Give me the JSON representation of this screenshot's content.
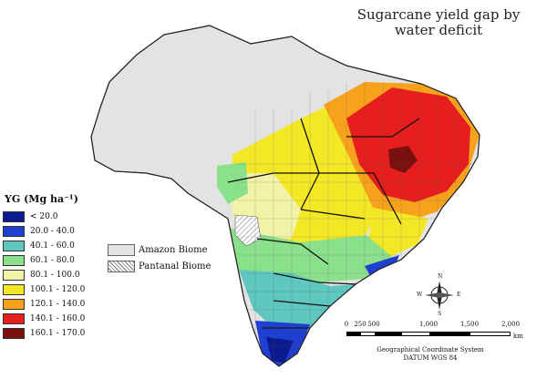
{
  "map": {
    "title_line1": "Sugarcane yield gap by",
    "title_line2": "water deficit"
  },
  "legend": {
    "title": "YG (Mg ha⁻¹)",
    "classes": [
      {
        "label": "< 20.0",
        "color": "#0b1a8c"
      },
      {
        "label": "20.0 - 40.0",
        "color": "#1f3fd1"
      },
      {
        "label": "40.1 - 60.0",
        "color": "#5ec7c0"
      },
      {
        "label": "60.1 - 80.0",
        "color": "#8be08b"
      },
      {
        "label": "80.1 - 100.0",
        "color": "#f2f2a8"
      },
      {
        "label": "100.1 - 120.0",
        "color": "#f4e826"
      },
      {
        "label": "120.1 - 140.0",
        "color": "#f6a21c"
      },
      {
        "label": "140.1 - 160.0",
        "color": "#e61e1e"
      },
      {
        "label": "160.1 - 170.0",
        "color": "#7a1010"
      }
    ]
  },
  "overlays": {
    "amazon_label": "Amazon Biome",
    "pantanal_label": "Pantanal Biome"
  },
  "scale": {
    "ticks": [
      "0",
      "250",
      "500",
      "1,000",
      "1,500",
      "2,000"
    ],
    "unit": "km"
  },
  "compass": {
    "n": "N",
    "s": "S",
    "e": "E",
    "w": "W"
  },
  "coordinate_system": {
    "line1": "Geographical Coordinate System",
    "line2": "DATUM WGS 84"
  }
}
